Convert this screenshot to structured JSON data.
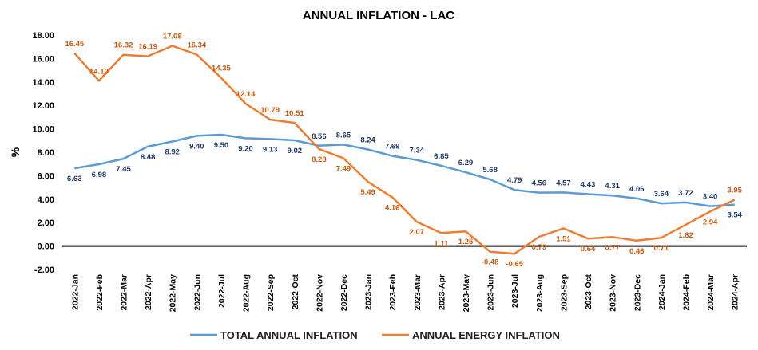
{
  "chart_data": {
    "type": "line",
    "title": "ANNUAL INFLATION  - LAC",
    "ylabel": "%",
    "xlabel": "",
    "ylim": [
      -2,
      18
    ],
    "yticks": [
      "-2.00",
      "0.00",
      "2.00",
      "4.00",
      "6.00",
      "8.00",
      "10.00",
      "12.00",
      "14.00",
      "16.00",
      "18.00"
    ],
    "grid": false,
    "legend_position": "bottom",
    "categories": [
      "2022-Jan",
      "2022-Feb",
      "2022-Mar",
      "2022-Apr",
      "2022-May",
      "2022-Jun",
      "2022-Jul",
      "2022-Aug",
      "2022-Sep",
      "2022-Oct",
      "2022-Nov",
      "2022-Dec",
      "2023-Jan",
      "2023-Feb",
      "2023-Mar",
      "2023-Apr",
      "2023-May",
      "2023-Jun",
      "2023-Jul",
      "2023-Aug",
      "2023-Sep",
      "2023-Oct",
      "2023-Nov",
      "2023-Dec",
      "2024-Jan",
      "2024-Feb",
      "2024-Mar",
      "2024-Apr"
    ],
    "series": [
      {
        "name": "TOTAL ANNUAL INFLATION",
        "color": "#5b9bd5",
        "label_color": "#1f3864",
        "values": [
          6.63,
          6.98,
          7.45,
          8.48,
          8.92,
          9.4,
          9.5,
          9.2,
          9.13,
          9.02,
          8.56,
          8.65,
          8.24,
          7.69,
          7.34,
          6.85,
          6.29,
          5.68,
          4.79,
          4.56,
          4.57,
          4.43,
          4.31,
          4.06,
          3.64,
          3.72,
          3.4,
          3.54
        ],
        "labels": [
          "6.63",
          "6.98",
          "7.45",
          "8.48",
          "8.92",
          "9.40",
          "9.50",
          "9.20",
          "9.13",
          "9.02",
          "8.56",
          "8.65",
          "8.24",
          "7.69",
          "7.34",
          "6.85",
          "6.29",
          "5.68",
          "4.79",
          "4.56",
          "4.57",
          "4.43",
          "4.31",
          "4.06",
          "3.64",
          "3.72",
          "3.40",
          "3.54"
        ]
      },
      {
        "name": "ANNUAL ENERGY INFLATION",
        "color": "#ed7d31",
        "label_color": "#c55a11",
        "values": [
          16.45,
          14.1,
          16.32,
          16.19,
          17.08,
          16.34,
          14.35,
          12.14,
          10.79,
          10.51,
          8.28,
          7.49,
          5.49,
          4.16,
          2.07,
          1.11,
          1.25,
          -0.48,
          -0.65,
          0.79,
          1.51,
          0.64,
          0.77,
          0.46,
          0.71,
          1.82,
          2.94,
          3.95
        ],
        "labels": [
          "16.45",
          "14.10",
          "16.32",
          "16.19",
          "17.08",
          "16.34",
          "14.35",
          "12.14",
          "10.79",
          "10.51",
          "8.28",
          "7.49",
          "5.49",
          "4.16",
          "2.07",
          "1.11",
          "1.25",
          "-0.48",
          "-0.65",
          "0.79",
          "1.51",
          "0.64",
          "0.77",
          "0.46",
          "0.71",
          "1.82",
          "2.94",
          "3.95"
        ]
      }
    ]
  }
}
